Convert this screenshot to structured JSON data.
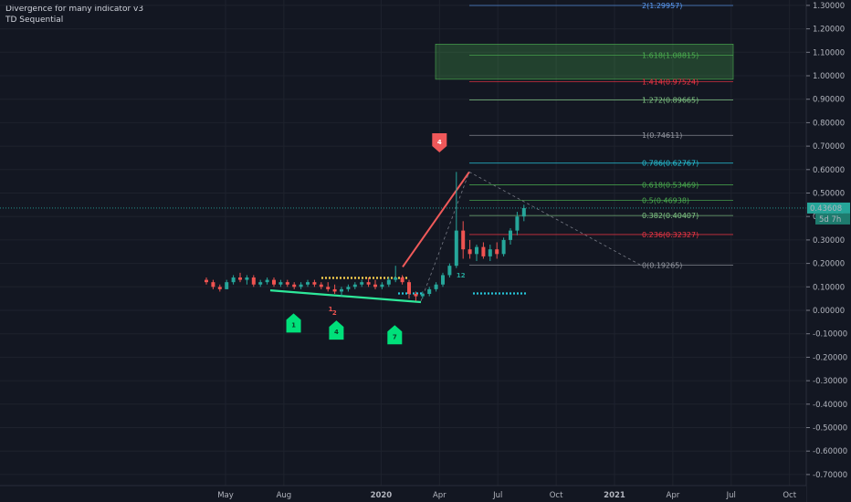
{
  "legend": {
    "line1": "Divergence for many indicator v3",
    "line2": "TD Sequential"
  },
  "chart_data": {
    "type": "candlestick",
    "ylim": [
      -0.72,
      1.32
    ],
    "y_ticks": [
      "1.30000",
      "1.20000",
      "1.10000",
      "1.00000",
      "0.90000",
      "0.80000",
      "0.70000",
      "0.60000",
      "0.50000",
      "0.40000",
      "0.30000",
      "0.20000",
      "0.10000",
      "0.00000",
      "-0.10000",
      "-0.20000",
      "-0.30000",
      "-0.40000",
      "-0.50000",
      "-0.60000",
      "-0.70000"
    ],
    "y_tick_values": [
      1.3,
      1.2,
      1.1,
      1.0,
      0.9,
      0.8,
      0.7,
      0.6,
      0.5,
      0.4,
      0.3,
      0.2,
      0.1,
      0.0,
      -0.1,
      -0.2,
      -0.3,
      -0.4,
      -0.5,
      -0.6,
      -0.7
    ],
    "x_ticks": [
      "May",
      "Aug",
      "2020",
      "Apr",
      "Jul",
      "Oct",
      "2021",
      "Apr",
      "Jul",
      "Oct"
    ],
    "x_tick_bold": [
      false,
      false,
      true,
      false,
      false,
      false,
      true,
      false,
      false,
      false
    ],
    "current_price": "0.43608",
    "countdown": "5d 7h",
    "fib_levels": [
      {
        "label": "2(1.29957)",
        "value": 1.29957,
        "color": "#5b9cf6"
      },
      {
        "label": "1.618(1.08815)",
        "value": 1.08815,
        "color": "#4caf50"
      },
      {
        "label": "1.414(0.97524)",
        "value": 0.97524,
        "color": "#f23645"
      },
      {
        "label": "1.272(0.89665)",
        "value": 0.89665,
        "color": "#81c784"
      },
      {
        "label": "1(0.74611)",
        "value": 0.74611,
        "color": "#9598a1"
      },
      {
        "label": "0.786(0.62767)",
        "value": 0.62767,
        "color": "#26c6da"
      },
      {
        "label": "0.618(0.53469)",
        "value": 0.53469,
        "color": "#4caf50"
      },
      {
        "label": "0.5(0.46938)",
        "value": 0.46938,
        "color": "#4caf50"
      },
      {
        "label": "0.382(0.40407)",
        "value": 0.40407,
        "color": "#81c784"
      },
      {
        "label": "0.236(0.32327)",
        "value": 0.32327,
        "color": "#f23645"
      },
      {
        "label": "0(0.19265)",
        "value": 0.19265,
        "color": "#9598a1"
      }
    ],
    "candles": [
      {
        "o": 0.13,
        "h": 0.14,
        "l": 0.11,
        "c": 0.12
      },
      {
        "o": 0.12,
        "h": 0.13,
        "l": 0.09,
        "c": 0.1
      },
      {
        "o": 0.1,
        "h": 0.11,
        "l": 0.08,
        "c": 0.09
      },
      {
        "o": 0.09,
        "h": 0.13,
        "l": 0.09,
        "c": 0.12
      },
      {
        "o": 0.12,
        "h": 0.15,
        "l": 0.11,
        "c": 0.14
      },
      {
        "o": 0.14,
        "h": 0.16,
        "l": 0.12,
        "c": 0.13
      },
      {
        "o": 0.13,
        "h": 0.15,
        "l": 0.11,
        "c": 0.14
      },
      {
        "o": 0.14,
        "h": 0.15,
        "l": 0.1,
        "c": 0.11
      },
      {
        "o": 0.11,
        "h": 0.13,
        "l": 0.1,
        "c": 0.12
      },
      {
        "o": 0.12,
        "h": 0.14,
        "l": 0.11,
        "c": 0.13
      },
      {
        "o": 0.13,
        "h": 0.14,
        "l": 0.1,
        "c": 0.11
      },
      {
        "o": 0.11,
        "h": 0.13,
        "l": 0.1,
        "c": 0.12
      },
      {
        "o": 0.12,
        "h": 0.13,
        "l": 0.1,
        "c": 0.11
      },
      {
        "o": 0.11,
        "h": 0.12,
        "l": 0.09,
        "c": 0.1
      },
      {
        "o": 0.1,
        "h": 0.12,
        "l": 0.09,
        "c": 0.11
      },
      {
        "o": 0.11,
        "h": 0.13,
        "l": 0.1,
        "c": 0.12
      },
      {
        "o": 0.12,
        "h": 0.13,
        "l": 0.1,
        "c": 0.11
      },
      {
        "o": 0.11,
        "h": 0.12,
        "l": 0.09,
        "c": 0.1
      },
      {
        "o": 0.1,
        "h": 0.12,
        "l": 0.08,
        "c": 0.09
      },
      {
        "o": 0.09,
        "h": 0.11,
        "l": 0.07,
        "c": 0.08
      },
      {
        "o": 0.08,
        "h": 0.1,
        "l": 0.06,
        "c": 0.09
      },
      {
        "o": 0.09,
        "h": 0.11,
        "l": 0.08,
        "c": 0.1
      },
      {
        "o": 0.1,
        "h": 0.12,
        "l": 0.09,
        "c": 0.11
      },
      {
        "o": 0.11,
        "h": 0.13,
        "l": 0.1,
        "c": 0.12
      },
      {
        "o": 0.12,
        "h": 0.14,
        "l": 0.1,
        "c": 0.11
      },
      {
        "o": 0.11,
        "h": 0.13,
        "l": 0.09,
        "c": 0.1
      },
      {
        "o": 0.1,
        "h": 0.12,
        "l": 0.09,
        "c": 0.11
      },
      {
        "o": 0.11,
        "h": 0.14,
        "l": 0.1,
        "c": 0.13
      },
      {
        "o": 0.13,
        "h": 0.19,
        "l": 0.12,
        "c": 0.14
      },
      {
        "o": 0.14,
        "h": 0.15,
        "l": 0.11,
        "c": 0.12
      },
      {
        "o": 0.12,
        "h": 0.13,
        "l": 0.05,
        "c": 0.07
      },
      {
        "o": 0.07,
        "h": 0.08,
        "l": 0.04,
        "c": 0.06
      },
      {
        "o": 0.06,
        "h": 0.08,
        "l": 0.05,
        "c": 0.07
      },
      {
        "o": 0.07,
        "h": 0.1,
        "l": 0.06,
        "c": 0.09
      },
      {
        "o": 0.09,
        "h": 0.12,
        "l": 0.08,
        "c": 0.11
      },
      {
        "o": 0.11,
        "h": 0.16,
        "l": 0.1,
        "c": 0.15
      },
      {
        "o": 0.15,
        "h": 0.2,
        "l": 0.14,
        "c": 0.19
      },
      {
        "o": 0.19,
        "h": 0.59,
        "l": 0.18,
        "c": 0.34
      },
      {
        "o": 0.34,
        "h": 0.38,
        "l": 0.22,
        "c": 0.26
      },
      {
        "o": 0.26,
        "h": 0.3,
        "l": 0.22,
        "c": 0.24
      },
      {
        "o": 0.24,
        "h": 0.28,
        "l": 0.21,
        "c": 0.27
      },
      {
        "o": 0.27,
        "h": 0.29,
        "l": 0.22,
        "c": 0.23
      },
      {
        "o": 0.23,
        "h": 0.28,
        "l": 0.21,
        "c": 0.26
      },
      {
        "o": 0.26,
        "h": 0.29,
        "l": 0.22,
        "c": 0.24
      },
      {
        "o": 0.24,
        "h": 0.31,
        "l": 0.23,
        "c": 0.3
      },
      {
        "o": 0.3,
        "h": 0.35,
        "l": 0.28,
        "c": 0.34
      },
      {
        "o": 0.34,
        "h": 0.42,
        "l": 0.32,
        "c": 0.4
      },
      {
        "o": 0.4,
        "h": 0.45,
        "l": 0.38,
        "c": 0.436
      }
    ],
    "td_markers": [
      {
        "label": "1",
        "type": "buy",
        "x_month": 3.5,
        "value": -0.06
      },
      {
        "label": "4",
        "type": "buy",
        "x_month": 5.7,
        "value": -0.09
      },
      {
        "label": "7",
        "type": "buy",
        "x_month": 8.7,
        "value": -0.11
      },
      {
        "label": "4",
        "type": "sell",
        "x_month": 11.0,
        "value": 0.72
      }
    ],
    "td_counts": [
      {
        "label": "1",
        "x_month": 5.4,
        "value": -0.003
      },
      {
        "label": "2",
        "x_month": 5.6,
        "value": -0.02
      },
      {
        "label": "12",
        "x_month": 12.1,
        "value": 0.14
      }
    ]
  }
}
